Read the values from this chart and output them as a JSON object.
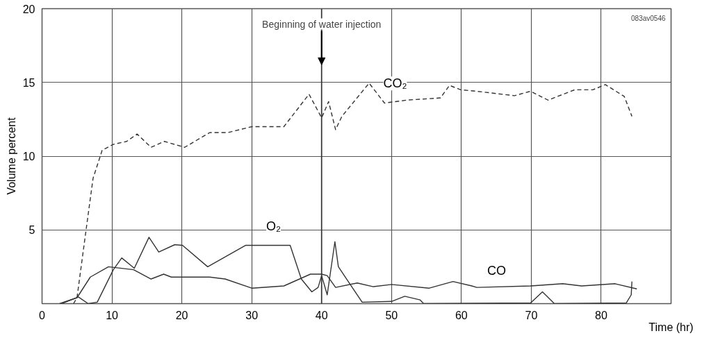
{
  "chart_data": {
    "type": "line",
    "xlabel": "Time (hr)",
    "ylabel": "Volume percent",
    "xlim": [
      0,
      90
    ],
    "ylim": [
      0,
      20
    ],
    "xticks": [
      0,
      10,
      20,
      30,
      40,
      50,
      60,
      70,
      80
    ],
    "yticks": [
      5,
      10,
      15,
      20
    ],
    "grid": true,
    "legend": false,
    "annotations": [
      "083av0546"
    ],
    "ref_lines": [
      {
        "axis": "x",
        "value": 40,
        "label": "Beginning of water injection"
      }
    ],
    "series": [
      {
        "name": "CO₂",
        "color": "#333333",
        "line_style": "dashed",
        "x": [
          4.5,
          5.0,
          6.3,
          7.3,
          8.6,
          10.2,
          12.1,
          13.6,
          15.6,
          17.5,
          20.4,
          24.0,
          26.6,
          30.0,
          34.6,
          38.2,
          40.0,
          41.0,
          42.0,
          42.9,
          46.8,
          49.0,
          52.2,
          57.0,
          58.3,
          59.9,
          62.2,
          67.6,
          69.9,
          72.4,
          76.2,
          78.8,
          80.6,
          83.3,
          84.4
        ],
        "values": [
          0,
          0.4,
          5,
          8.5,
          10.4,
          10.8,
          11.0,
          11.5,
          10.6,
          11.0,
          10.6,
          11.6,
          11.6,
          12.0,
          12.0,
          14.2,
          12.6,
          13.7,
          11.8,
          12.7,
          14.95,
          13.6,
          13.8,
          13.95,
          14.8,
          14.5,
          14.4,
          14.1,
          14.4,
          13.8,
          14.5,
          14.5,
          14.85,
          14.05,
          12.7
        ]
      },
      {
        "name": "O₂",
        "color": "#333333",
        "line_style": "solid",
        "x": [
          2.8,
          5.2,
          6.6,
          7.9,
          10.2,
          11.4,
          13.2,
          15.3,
          16.7,
          19.0,
          20.1,
          23.7,
          29.1,
          35.5,
          37.1,
          38.6,
          39.5,
          40.0,
          40.8,
          41.9,
          42.4,
          45.8,
          50.0,
          51.9,
          54.1,
          54.6,
          69.9,
          71.6,
          73.3,
          83.6,
          84.3,
          84.4
        ],
        "values": [
          0,
          0.45,
          0,
          0.1,
          2.3,
          3.1,
          2.4,
          4.5,
          3.5,
          4.0,
          3.95,
          2.5,
          3.95,
          3.95,
          1.67,
          0.8,
          1.1,
          1.9,
          0.6,
          4.2,
          2.5,
          0.1,
          0.15,
          0.5,
          0.25,
          0,
          0.05,
          0.8,
          0,
          0.05,
          0.6,
          1.5
        ]
      },
      {
        "name": "CO",
        "color": "#333333",
        "line_style": "solid",
        "x": [
          2.5,
          5.0,
          6.9,
          9.5,
          13.1,
          15.6,
          17.4,
          18.5,
          24.0,
          26.2,
          30.0,
          34.6,
          38.4,
          40.0,
          40.8,
          42.0,
          45.1,
          47.4,
          50.0,
          55.4,
          58.8,
          61.5,
          62.2,
          69.9,
          74.5,
          77.2,
          82.0,
          85.1
        ],
        "values": [
          0,
          0.4,
          1.8,
          2.5,
          2.3,
          1.67,
          2.0,
          1.8,
          1.8,
          1.67,
          1.05,
          1.2,
          2.0,
          2.0,
          1.9,
          1.1,
          1.4,
          1.15,
          1.3,
          1.05,
          1.5,
          1.2,
          1.1,
          1.2,
          1.35,
          1.2,
          1.35,
          1.0
        ]
      }
    ]
  }
}
